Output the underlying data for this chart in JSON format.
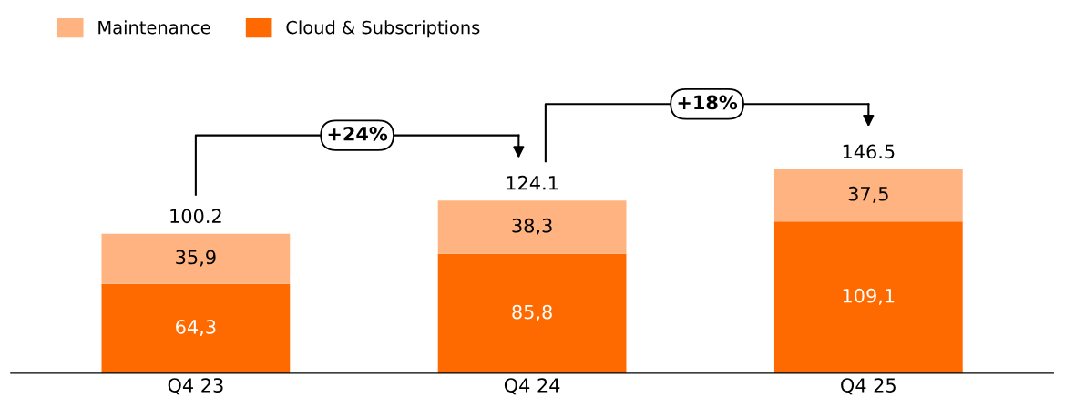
{
  "chart_data": {
    "type": "bar",
    "stacked": true,
    "categories": [
      "Q4 23",
      "Q4 24",
      "Q4 25"
    ],
    "series": [
      {
        "name": "Cloud & Subscriptions",
        "color": "#ff6a00",
        "values": [
          64.3,
          85.8,
          109.1
        ],
        "value_labels": [
          "64,3",
          "85,8",
          "109,1"
        ]
      },
      {
        "name": "Maintenance",
        "color": "#ffb380",
        "values": [
          35.9,
          38.3,
          37.5
        ],
        "value_labels": [
          "35,9",
          "38,3",
          "37,5"
        ]
      }
    ],
    "totals": [
      "100.2",
      "124.1",
      "146.5"
    ],
    "annotations": [
      "+24%",
      "+18%"
    ],
    "tick_labels": "x",
    "grid": false,
    "legend": "top left"
  }
}
